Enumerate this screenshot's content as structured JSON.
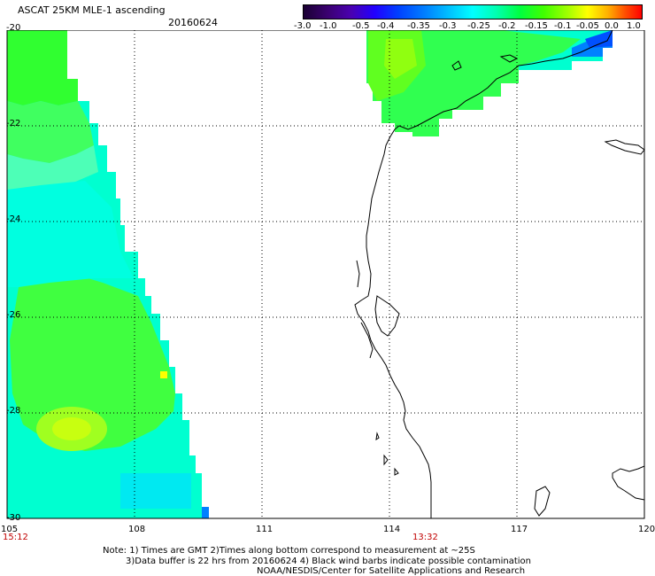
{
  "header": {
    "title": "ASCAT 25KM MLE-1 ascending",
    "date": "20160624"
  },
  "colorbar": {
    "labels": [
      "-3.0",
      "-1.0",
      "-0.5",
      "-0.4",
      "-0.35",
      "-0.3",
      "-0.25",
      "-0.2",
      "-0.15",
      "-0.1",
      "-0.05",
      "0.0",
      "1.0"
    ]
  },
  "axes": {
    "lon_labels": [
      "105",
      "108",
      "111",
      "114",
      "117",
      "120"
    ],
    "lat_labels": [
      "-20",
      "-22",
      "-24",
      "-26",
      "-28",
      "-30"
    ]
  },
  "times": {
    "left": "15:12",
    "mid": "13:32"
  },
  "notes": {
    "line1": "Note: 1) Times are GMT 2)Times along bottom correspond to measurement at ~25S",
    "line2": "3)Data buffer is 22 hrs from 20160624 4) Black wind barbs indicate possible contamination",
    "line3": "NOAA/NESDIS/Center for Satellite Applications and Research"
  },
  "colors": {
    "grid": "#000000",
    "coast": "#000000",
    "time_red": "#c00000"
  }
}
